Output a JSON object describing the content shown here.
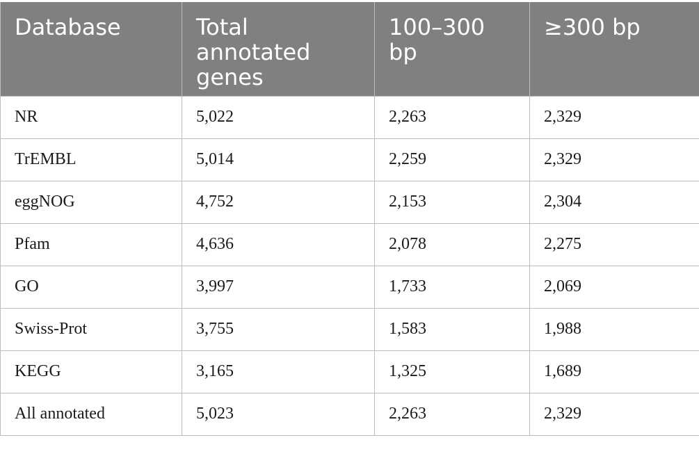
{
  "table": {
    "headers": [
      "Database",
      "Total annotated genes",
      "100–300 bp",
      "≥300 bp"
    ],
    "rows": [
      [
        "NR",
        "5,022",
        "2,263",
        "2,329"
      ],
      [
        "TrEMBL",
        "5,014",
        "2,259",
        "2,329"
      ],
      [
        "eggNOG",
        "4,752",
        "2,153",
        "2,304"
      ],
      [
        "Pfam",
        "4,636",
        "2,078",
        "2,275"
      ],
      [
        "GO",
        "3,997",
        "1,733",
        "2,069"
      ],
      [
        "Swiss-Prot",
        "3,755",
        "1,583",
        "1,988"
      ],
      [
        "KEGG",
        "3,165",
        "1,325",
        "1,689"
      ],
      [
        "All annotated",
        "5,023",
        "2,263",
        "2,329"
      ]
    ]
  }
}
